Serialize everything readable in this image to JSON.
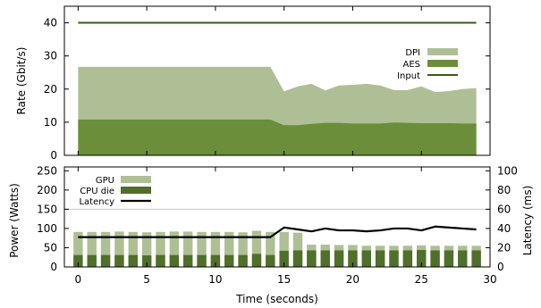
{
  "chart_data": [
    {
      "type": "area",
      "ylabel": "Rate (Gbit/s)",
      "ylim": [
        0,
        45
      ],
      "yticks": [
        0,
        10,
        20,
        30,
        40
      ],
      "x": [
        0,
        1,
        2,
        3,
        4,
        5,
        6,
        7,
        8,
        9,
        10,
        11,
        12,
        13,
        14,
        15,
        16,
        17,
        18,
        19,
        20,
        21,
        22,
        23,
        24,
        25,
        26,
        27,
        28,
        29
      ],
      "legend_position": "right",
      "series": [
        {
          "name": "DPI",
          "kind": "area",
          "color": "#aebf96",
          "values": [
            26.7,
            26.7,
            26.7,
            26.7,
            26.7,
            26.7,
            26.7,
            26.7,
            26.7,
            26.7,
            26.7,
            26.7,
            26.7,
            26.7,
            26.7,
            19.3,
            20.8,
            21.6,
            19.6,
            21.1,
            21.3,
            21.6,
            21.1,
            19.7,
            19.7,
            20.8,
            19.1,
            19.4,
            20.0,
            20.3
          ]
        },
        {
          "name": "AES",
          "kind": "area",
          "color": "#6b8e3a",
          "values": [
            10.8,
            10.8,
            10.8,
            10.8,
            10.8,
            10.8,
            10.8,
            10.8,
            10.8,
            10.8,
            10.8,
            10.8,
            10.8,
            10.8,
            10.8,
            9.1,
            9.1,
            9.5,
            9.8,
            9.8,
            9.6,
            9.6,
            9.6,
            9.9,
            9.8,
            9.7,
            9.7,
            9.7,
            9.6,
            9.6
          ]
        },
        {
          "name": "Input",
          "kind": "line",
          "color": "#3c5a14",
          "values": [
            40,
            40,
            40,
            40,
            40,
            40,
            40,
            40,
            40,
            40,
            40,
            40,
            40,
            40,
            40,
            40,
            40,
            40,
            40,
            40,
            40,
            40,
            40,
            40,
            40,
            40,
            40,
            40,
            40,
            40
          ]
        }
      ]
    },
    {
      "type": "bar",
      "xlabel": "Time (seconds)",
      "ylabel": "Power (Watts)",
      "ylabel_right": "Latency (ms)",
      "ylim": [
        0,
        260
      ],
      "yticks": [
        0,
        50,
        100,
        150,
        200,
        250
      ],
      "ylim_right": [
        0,
        104
      ],
      "yticks_right": [
        0,
        20,
        40,
        60,
        80,
        100
      ],
      "xlim": [
        -1,
        30
      ],
      "xticks": [
        0,
        5,
        10,
        15,
        20,
        25,
        30
      ],
      "x": [
        0,
        1,
        2,
        3,
        4,
        5,
        6,
        7,
        8,
        9,
        10,
        11,
        12,
        13,
        14,
        15,
        16,
        17,
        18,
        19,
        20,
        21,
        22,
        23,
        24,
        25,
        26,
        27,
        28,
        29
      ],
      "stacked": true,
      "grid_y_at": 150,
      "legend_position": "top-left",
      "series": [
        {
          "name": "GPU",
          "kind": "bar",
          "color": "#aebf96",
          "values": [
            91,
            91,
            91,
            92,
            91,
            90,
            91,
            92,
            92,
            91,
            91,
            91,
            90,
            94,
            91,
            91,
            89,
            58,
            58,
            57,
            57,
            55,
            55,
            55,
            55,
            56,
            55,
            55,
            55,
            55
          ]
        },
        {
          "name": "CPU die",
          "kind": "bar",
          "color": "#4f6f2a",
          "values": [
            31,
            31,
            31,
            31,
            31,
            30,
            31,
            31,
            31,
            31,
            31,
            31,
            31,
            34,
            31,
            42,
            43,
            43,
            43,
            43,
            43,
            43,
            43,
            43,
            43,
            44,
            43,
            43,
            43,
            43
          ]
        },
        {
          "name": "Latency",
          "kind": "line",
          "axis": "right",
          "color": "#000000",
          "values": [
            31,
            31,
            31,
            31,
            31,
            31,
            31,
            31,
            31,
            31,
            31,
            31,
            31,
            31,
            31,
            41,
            39,
            37,
            40,
            38,
            38,
            37,
            38,
            40,
            40,
            38,
            42,
            41,
            40,
            39
          ]
        }
      ]
    }
  ]
}
